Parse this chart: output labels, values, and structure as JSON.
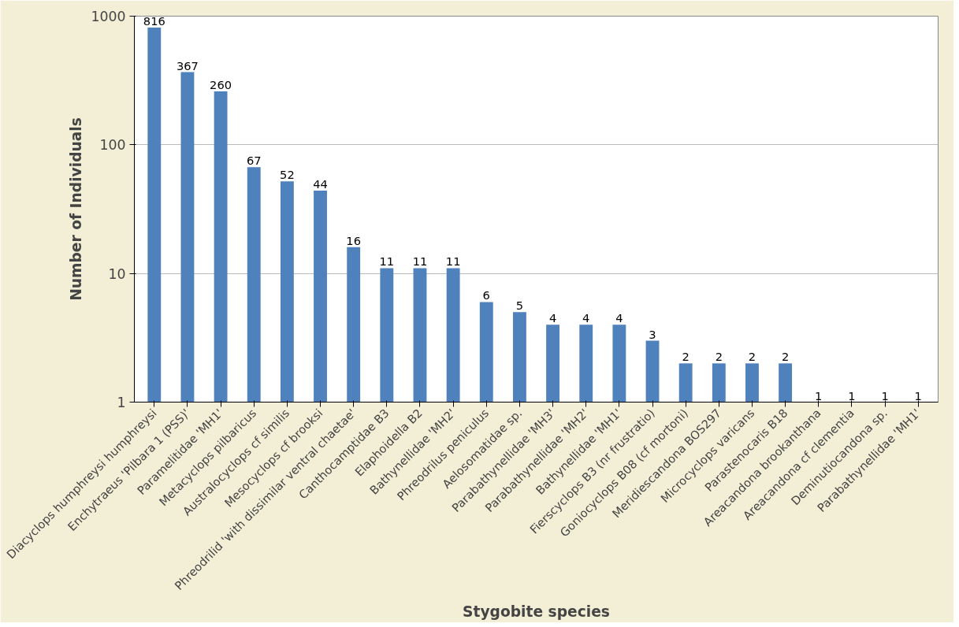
{
  "chart_data": {
    "type": "bar",
    "xlabel": "Stygobite species",
    "ylabel": "Number of Individuals",
    "categories": [
      "Diacyclops humphreysi humphreysi",
      "Enchytraeus 'Pilbara 1 (PSS)'",
      "Paramelitidae 'MH1'",
      "Metacyclops pilbaricus",
      "Australocyclops cf similis",
      "Mesocyclops cf brooksi",
      "Phreodrilid 'with dissimilar ventral chaetae'",
      "Canthocamptidae B3",
      "Elaphoidella B2",
      "Bathynellidae 'MH2'",
      "Phreodrilus peniculus",
      "Aelosomatidae sp.",
      "Parabathynellidae 'MH3'",
      "Parabathynellidae 'MH2'",
      "Bathynellidae 'MH1'",
      "Fierscyclops B3 (nr frustratio)",
      "Goniocyclops B08 (cf mortoni)",
      "Meridiescandona BOS297",
      "Microcyclops varicans",
      "Parastenocaris B18",
      "Areacandona brookanthana",
      "Areacandona cf clementia",
      "Deminutiocandona sp.",
      "Parabathynellidae 'MH1'"
    ],
    "values": [
      816,
      367,
      260,
      67,
      52,
      44,
      16,
      11,
      11,
      11,
      6,
      5,
      4,
      4,
      4,
      3,
      2,
      2,
      2,
      2,
      1,
      1,
      1,
      1
    ],
    "color": "#4f81bd",
    "log": true,
    "ylim": [
      1,
      1000
    ],
    "yticks": [
      1,
      10,
      100,
      1000
    ],
    "grid": "y",
    "data_labels": true
  }
}
